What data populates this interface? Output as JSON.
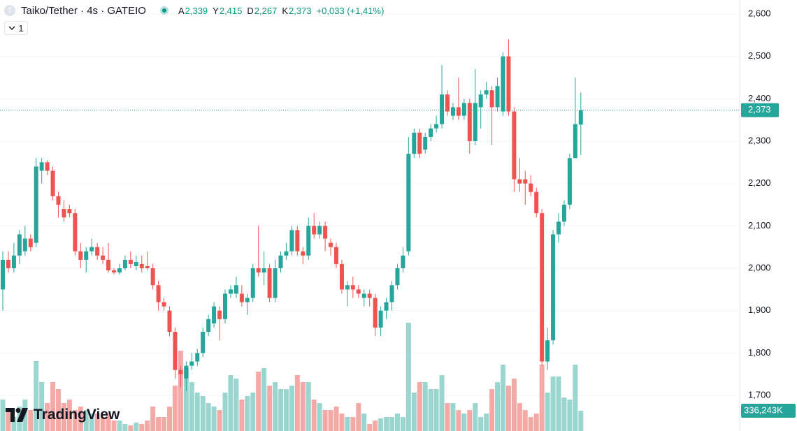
{
  "chart_data": {
    "type": "candlestick",
    "title": "Taiko/Tether · 4s · GATEIO",
    "legend": {
      "open_label": "A",
      "open": "2,339",
      "high_label": "Y",
      "high": "2,415",
      "low_label": "D",
      "low": "2,267",
      "close_label": "K",
      "close": "2,373",
      "change": "+0,033 (+1,41%)"
    },
    "open": [
      1.95,
      2.02,
      2.0,
      2.03,
      2.04,
      2.07,
      2.06,
      2.23,
      2.25,
      2.23,
      2.17,
      2.14,
      2.14,
      2.13,
      2.04,
      2.02,
      2.04,
      2.05,
      2.03,
      2.02,
      1.995,
      1.99,
      2.0,
      2.02,
      2.005,
      2.01,
      2.005,
      2.0,
      1.96,
      1.92,
      1.9,
      1.85,
      1.76,
      1.74,
      1.77,
      1.78,
      1.8,
      1.85,
      1.87,
      1.9,
      1.88,
      1.94,
      1.94,
      1.94,
      1.92,
      1.93,
      2.0,
      1.99,
      2.0,
      1.93,
      2.0,
      2.03,
      2.04,
      2.09,
      2.04,
      2.03,
      2.1,
      2.08,
      2.1,
      2.06,
      2.05,
      2.01,
      1.95,
      1.96,
      1.95,
      1.93,
      1.94,
      1.93,
      1.86,
      1.9,
      1.92,
      1.96,
      2.0,
      2.04,
      2.27,
      2.32,
      2.28,
      2.31,
      2.33,
      2.34,
      2.41,
      2.36,
      2.38,
      2.36,
      2.39,
      2.3,
      2.38,
      2.41,
      2.42,
      2.38,
      2.37,
      2.5,
      2.37,
      2.21,
      2.21,
      2.2,
      2.18,
      2.13,
      1.78,
      1.83,
      2.08,
      2.11,
      2.15,
      2.26,
      2.339
    ],
    "high": [
      2.04,
      2.04,
      2.06,
      2.09,
      2.1,
      2.08,
      2.26,
      2.26,
      2.255,
      2.24,
      2.18,
      2.16,
      2.15,
      2.14,
      2.06,
      2.05,
      2.07,
      2.06,
      2.05,
      2.06,
      2.0,
      2.01,
      2.03,
      2.04,
      2.03,
      2.03,
      2.04,
      2.01,
      1.97,
      1.93,
      1.91,
      1.86,
      1.77,
      1.78,
      1.8,
      1.81,
      1.86,
      1.89,
      1.92,
      1.91,
      1.95,
      1.96,
      1.98,
      1.96,
      1.94,
      2.01,
      2.1,
      2.04,
      2.01,
      2.02,
      2.04,
      2.06,
      2.1,
      2.1,
      2.05,
      2.12,
      2.13,
      2.11,
      2.11,
      2.07,
      2.06,
      2.02,
      1.97,
      1.98,
      1.96,
      1.95,
      1.95,
      1.94,
      1.91,
      1.93,
      1.97,
      2.01,
      2.05,
      2.31,
      2.33,
      2.33,
      2.32,
      2.34,
      2.36,
      2.48,
      2.42,
      2.39,
      2.45,
      2.4,
      2.4,
      2.47,
      2.42,
      2.44,
      2.43,
      2.45,
      2.51,
      2.54,
      2.38,
      2.26,
      2.23,
      2.22,
      2.19,
      2.14,
      1.86,
      2.09,
      2.13,
      2.16,
      2.27,
      2.45,
      2.415
    ],
    "low": [
      1.9,
      1.99,
      1.99,
      2.01,
      2.03,
      2.04,
      2.05,
      2.2,
      2.22,
      2.16,
      2.12,
      2.11,
      2.12,
      2.03,
      2.0,
      1.99,
      2.03,
      2.02,
      2.01,
      1.99,
      1.985,
      1.985,
      1.995,
      2.0,
      1.995,
      1.99,
      1.995,
      1.95,
      1.9,
      1.9,
      1.84,
      1.74,
      1.72,
      1.71,
      1.76,
      1.77,
      1.79,
      1.84,
      1.86,
      1.83,
      1.87,
      1.93,
      1.93,
      1.91,
      1.89,
      1.92,
      1.98,
      1.96,
      1.92,
      1.92,
      1.99,
      2.02,
      2.03,
      2.03,
      2.01,
      2.02,
      2.07,
      2.07,
      2.04,
      2.03,
      2.0,
      1.94,
      1.91,
      1.93,
      1.93,
      1.91,
      1.91,
      1.84,
      1.84,
      1.88,
      1.9,
      1.95,
      1.99,
      2.03,
      2.26,
      2.26,
      2.27,
      2.3,
      2.32,
      2.33,
      2.36,
      2.35,
      2.35,
      2.35,
      2.27,
      2.29,
      2.33,
      2.4,
      2.29,
      2.37,
      2.36,
      2.36,
      2.18,
      2.18,
      2.15,
      2.17,
      2.12,
      1.77,
      1.76,
      1.82,
      2.06,
      2.1,
      2.14,
      2.26,
      2.267
    ],
    "close": [
      2.02,
      2.0,
      2.03,
      2.08,
      2.07,
      2.05,
      2.24,
      2.25,
      2.23,
      2.17,
      2.15,
      2.12,
      2.13,
      2.04,
      2.02,
      2.04,
      2.05,
      2.03,
      2.02,
      1.995,
      1.99,
      2.0,
      2.02,
      2.01,
      2.015,
      2.0,
      2.0,
      1.96,
      1.92,
      1.91,
      1.85,
      1.76,
      1.75,
      1.77,
      1.78,
      1.8,
      1.85,
      1.88,
      1.91,
      1.88,
      1.94,
      1.95,
      1.96,
      1.92,
      1.93,
      2.0,
      1.99,
      2.0,
      1.93,
      2.0,
      2.03,
      2.04,
      2.09,
      2.04,
      2.03,
      2.1,
      2.08,
      2.1,
      2.07,
      2.05,
      2.01,
      1.95,
      1.96,
      1.95,
      1.94,
      1.94,
      1.93,
      1.86,
      1.9,
      1.92,
      1.96,
      2.0,
      2.03,
      2.27,
      2.32,
      2.27,
      2.31,
      2.33,
      2.34,
      2.41,
      2.37,
      2.38,
      2.36,
      2.39,
      2.3,
      2.39,
      2.41,
      2.42,
      2.38,
      2.43,
      2.5,
      2.37,
      2.21,
      2.2,
      2.2,
      2.18,
      2.13,
      1.78,
      1.83,
      2.08,
      2.11,
      2.15,
      2.26,
      2.34,
      2.373
    ],
    "volume": [
      522,
      348,
      232,
      406,
      522,
      348,
      1160,
      812,
      464,
      812,
      696,
      464,
      522,
      348,
      406,
      348,
      290,
      290,
      232,
      290,
      174,
      174,
      116,
      93,
      139,
      116,
      174,
      406,
      232,
      232,
      406,
      754,
      1334,
      1044,
      812,
      638,
      580,
      464,
      406,
      348,
      638,
      928,
      870,
      522,
      580,
      638,
      986,
      1044,
      754,
      812,
      696,
      696,
      754,
      928,
      812,
      812,
      522,
      464,
      348,
      348,
      406,
      290,
      232,
      232,
      464,
      290,
      116,
      174,
      209,
      232,
      232,
      290,
      232,
      1798,
      638,
      812,
      812,
      696,
      696,
      928,
      464,
      464,
      348,
      290,
      348,
      464,
      232,
      290,
      696,
      812,
      1102,
      754,
      870,
      464,
      348,
      232,
      290,
      1102,
      638,
      905,
      905,
      557,
      522,
      1102,
      336.243
    ],
    "last_price_label": "2,373",
    "last_volume_label": "336,243K",
    "ylim": [
      1.616,
      2.633
    ],
    "yticks": [
      {
        "value": 1.7,
        "label": "1,700"
      },
      {
        "value": 1.8,
        "label": "1,800"
      },
      {
        "value": 1.9,
        "label": "1,900"
      },
      {
        "value": 2.0,
        "label": "2,000"
      },
      {
        "value": 2.1,
        "label": "2,100"
      },
      {
        "value": 2.2,
        "label": "2,200"
      },
      {
        "value": 2.3,
        "label": "2,300"
      },
      {
        "value": 2.4,
        "label": "2,400"
      },
      {
        "value": 2.5,
        "label": "2,500"
      },
      {
        "value": 2.6,
        "label": "2,600"
      }
    ],
    "grid": true,
    "up_color": "#26a69a",
    "down_color": "#ef5350",
    "up_volume_color": "#9ad6cf",
    "down_volume_color": "#f5a9a7"
  },
  "ui": {
    "logo_letter": "T",
    "interval_button": "1",
    "brand": "TradingView"
  }
}
